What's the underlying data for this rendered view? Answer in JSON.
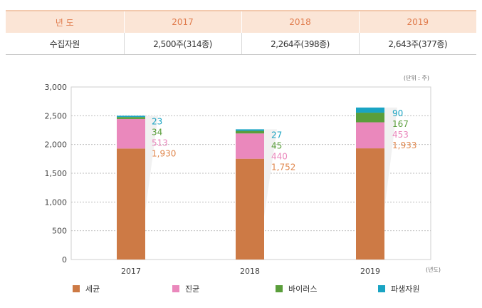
{
  "table": {
    "header": [
      "년 도",
      "2017",
      "2018",
      "2019"
    ],
    "row": [
      "수집자원",
      "2,500주(314종)",
      "2,264주(398종)",
      "2,643주(377종)"
    ]
  },
  "chart_data": {
    "type": "bar",
    "stacked": true,
    "categories": [
      "2017",
      "2018",
      "2019"
    ],
    "series": [
      {
        "name": "세균",
        "values": [
          1930,
          1752,
          1933
        ],
        "color": "#cd7a45"
      },
      {
        "name": "진균",
        "values": [
          513,
          440,
          453
        ],
        "color": "#ea88bc"
      },
      {
        "name": "바이러스",
        "values": [
          34,
          45,
          167
        ],
        "color": "#5a9e3b"
      },
      {
        "name": "파생자원",
        "values": [
          23,
          27,
          90
        ],
        "color": "#1aa4c3"
      }
    ],
    "data_labels": [
      [
        "1,930",
        "1,752",
        "1,933"
      ],
      [
        "513",
        "440",
        "453"
      ],
      [
        "34",
        "45",
        "167"
      ],
      [
        "23",
        "27",
        "90"
      ]
    ],
    "label_colors": [
      "#e0874d",
      "#ea88bc",
      "#5a9e3b",
      "#1aa4c3"
    ],
    "ylim": [
      0,
      3000
    ],
    "yticks": [
      0,
      500,
      1000,
      1500,
      2000,
      2500,
      3000
    ],
    "ytick_labels": [
      "0",
      "500",
      "1,000",
      "1,500",
      "2,000",
      "2,500",
      "3,000"
    ],
    "unit_label": "(단위 : 주)",
    "xunit_label": "(년도)",
    "grid": true,
    "legend_position": "bottom"
  }
}
